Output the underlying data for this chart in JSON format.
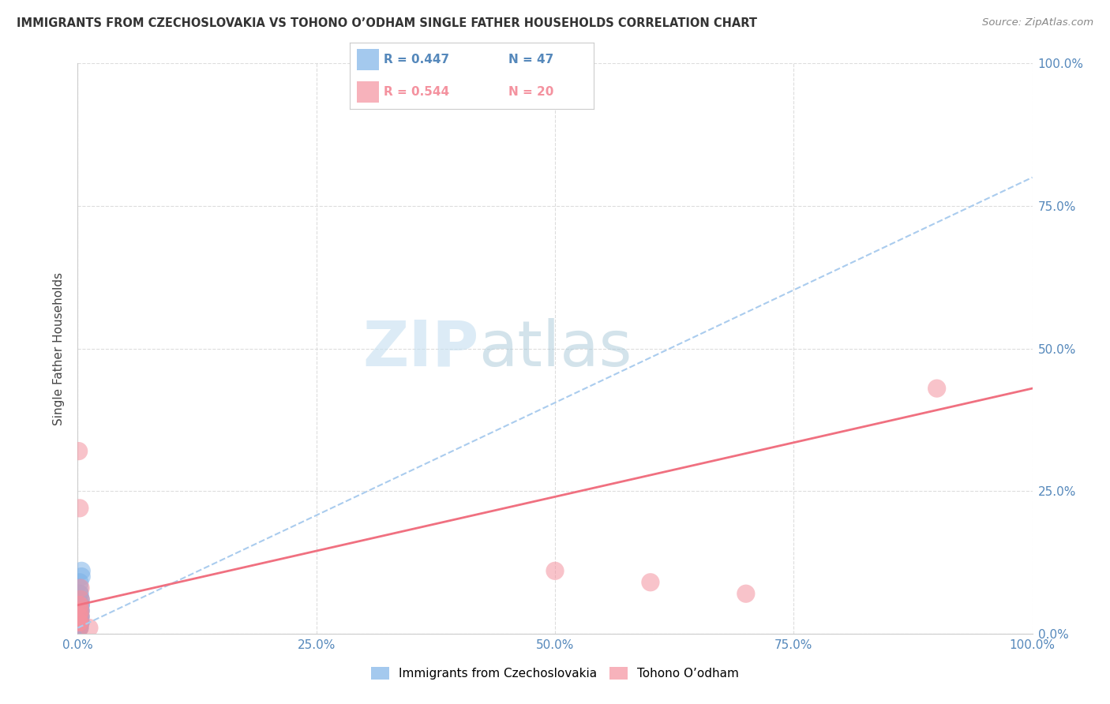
{
  "title": "IMMIGRANTS FROM CZECHOSLOVAKIA VS TOHONO O’ODHAM SINGLE FATHER HOUSEHOLDS CORRELATION CHART",
  "source": "Source: ZipAtlas.com",
  "xlabel_blue": "Immigrants from Czechoslovakia",
  "xlabel_pink": "Tohono O’odham",
  "ylabel": "Single Father Households",
  "blue_r": 0.447,
  "blue_n": 47,
  "pink_r": 0.544,
  "pink_n": 20,
  "blue_color": "#7EB3E8",
  "pink_color": "#F4929F",
  "blue_line_color": "#AACCEE",
  "pink_line_color": "#F07080",
  "title_color": "#333333",
  "axis_label_color": "#5588BB",
  "watermark_zip_color": "#BBDDEE",
  "watermark_atlas_color": "#99BBCC",
  "background_color": "#FFFFFF",
  "grid_color": "#DDDDDD",
  "blue_scatter_x": [
    0.001,
    0.002,
    0.001,
    0.002,
    0.003,
    0.002,
    0.001,
    0.002,
    0.003,
    0.002,
    0.001,
    0.003,
    0.002,
    0.001,
    0.003,
    0.002,
    0.001,
    0.002,
    0.003,
    0.001,
    0.002,
    0.001,
    0.003,
    0.002,
    0.001,
    0.002,
    0.003,
    0.002,
    0.001,
    0.002,
    0.001,
    0.003,
    0.002,
    0.001,
    0.004,
    0.003,
    0.002,
    0.001,
    0.003,
    0.002,
    0.001,
    0.004,
    0.003,
    0.002,
    0.001,
    0.003,
    0.002
  ],
  "blue_scatter_y": [
    0.01,
    0.02,
    0.03,
    0.04,
    0.02,
    0.01,
    0.05,
    0.03,
    0.02,
    0.04,
    0.01,
    0.06,
    0.03,
    0.02,
    0.05,
    0.04,
    0.01,
    0.07,
    0.03,
    0.02,
    0.08,
    0.01,
    0.04,
    0.03,
    0.02,
    0.09,
    0.05,
    0.02,
    0.01,
    0.03,
    0.06,
    0.02,
    0.04,
    0.01,
    0.1,
    0.03,
    0.07,
    0.02,
    0.04,
    0.01,
    0.03,
    0.11,
    0.05,
    0.02,
    0.01,
    0.06,
    0.03
  ],
  "pink_scatter_x": [
    0.001,
    0.002,
    0.003,
    0.001,
    0.002,
    0.001,
    0.003,
    0.002,
    0.012,
    0.001,
    0.002,
    0.003,
    0.001,
    0.002,
    0.5,
    0.6,
    0.7,
    0.9,
    0.003,
    0.002
  ],
  "pink_scatter_y": [
    0.32,
    0.22,
    0.04,
    0.03,
    0.05,
    0.02,
    0.08,
    0.04,
    0.01,
    0.03,
    0.05,
    0.06,
    0.02,
    0.01,
    0.11,
    0.09,
    0.07,
    0.43,
    0.03,
    0.02
  ],
  "xlim": [
    0.0,
    1.0
  ],
  "ylim": [
    0.0,
    1.0
  ],
  "xticks": [
    0.0,
    0.25,
    0.5,
    0.75,
    1.0
  ],
  "xtick_labels": [
    "0.0%",
    "25.0%",
    "50.0%",
    "75.0%",
    "100.0%"
  ],
  "ytick_positions": [
    0.0,
    0.25,
    0.5,
    0.75,
    1.0
  ],
  "right_ytick_labels": [
    "0.0%",
    "25.0%",
    "50.0%",
    "75.0%",
    "100.0%"
  ],
  "blue_line_x": [
    0.0,
    1.0
  ],
  "blue_line_y": [
    0.01,
    0.8
  ],
  "pink_line_x": [
    0.0,
    1.0
  ],
  "pink_line_y": [
    0.05,
    0.43
  ]
}
